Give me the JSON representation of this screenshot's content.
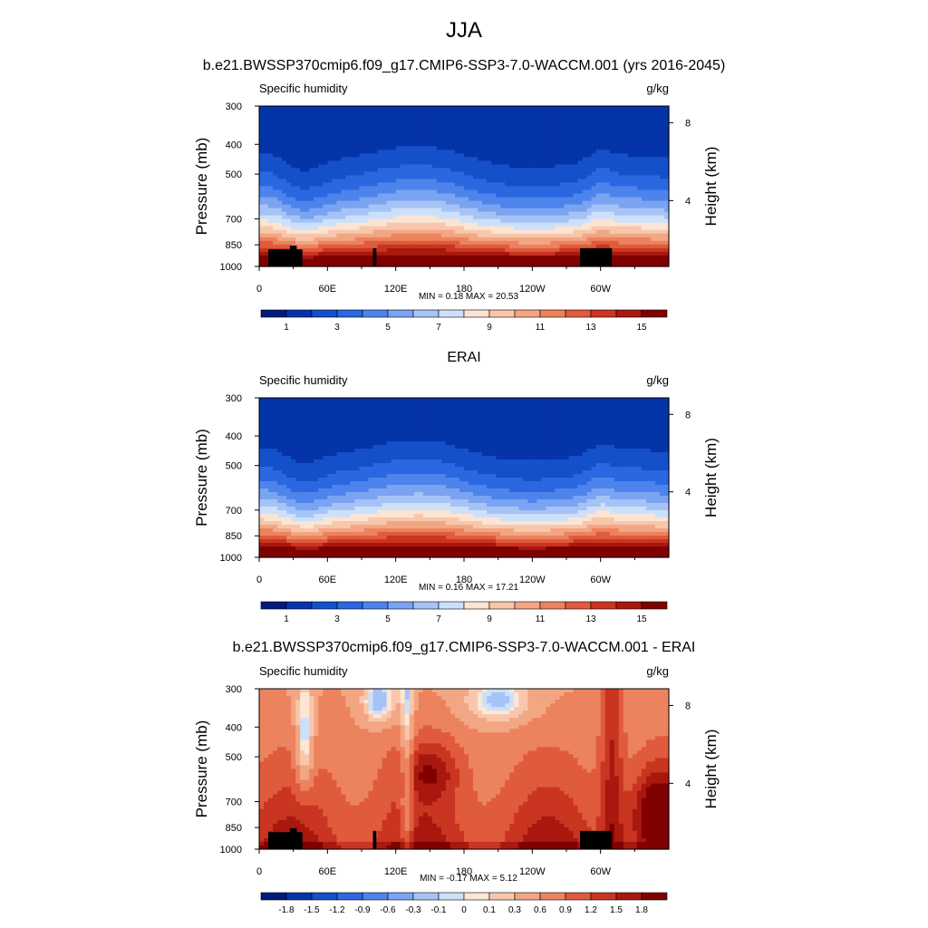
{
  "title": "JJA",
  "colors": {
    "abs_palette": [
      "#001a7d",
      "#0533a8",
      "#1450c9",
      "#2a67e0",
      "#4d84ec",
      "#7aa3f2",
      "#a6c3f6",
      "#cde0fa",
      "#fbe4d3",
      "#f8c7ab",
      "#f3a683",
      "#ec835e",
      "#e05a3c",
      "#c93520",
      "#a8180e",
      "#800000"
    ],
    "diff_palette": [
      "#001a7d",
      "#0533a8",
      "#1450c9",
      "#2a67e0",
      "#4d84ec",
      "#7aa3f2",
      "#a6c3f6",
      "#cde0fa",
      "#fde6d5",
      "#f8c7ab",
      "#f3a683",
      "#ec835e",
      "#e05a3c",
      "#c93520",
      "#a8180e",
      "#800000"
    ],
    "topography": "#000000"
  },
  "panels": [
    {
      "title": "b.e21.BWSSP370cmip6.f09_g17.CMIP6-SSP3-7.0-WACCM.001 (yrs 2016-2045)",
      "left_string": "Specific humidity",
      "right_string": "g/kg",
      "minmax": "MIN =   0.18  MAX =  20.53",
      "colorbar_labels": [
        "1",
        "3",
        "5",
        "7",
        "9",
        "11",
        "13",
        "15"
      ]
    },
    {
      "title": "ERAI",
      "left_string": "Specific humidity",
      "right_string": "g/kg",
      "minmax": "MIN =   0.16  MAX =  17.21",
      "colorbar_labels": [
        "1",
        "3",
        "5",
        "7",
        "9",
        "11",
        "13",
        "15"
      ]
    },
    {
      "title": "b.e21.BWSSP370cmip6.f09_g17.CMIP6-SSP3-7.0-WACCM.001 - ERAI",
      "left_string": "Specific humidity",
      "right_string": "g/kg",
      "minmax": "MIN =  -0.17  MAX =   5.12",
      "colorbar_labels": [
        "-1.8",
        "-1.5",
        "-1.2",
        "-0.9",
        "-0.6",
        "-0.3",
        "-0.1",
        "0",
        "0.1",
        "0.3",
        "0.6",
        "0.9",
        "1.2",
        "1.5",
        "1.8"
      ]
    }
  ],
  "chart_data": [
    {
      "type": "heatmap",
      "title": "b.e21.BWSSP370cmip6.f09_g17.CMIP6-SSP3-7.0-WACCM.001 (yrs 2016-2045)",
      "variable": "Specific humidity",
      "units": "g/kg",
      "ylabel": "Pressure (mb)",
      "ylabel_right": "Height (km)",
      "x_ticks": [
        "0",
        "60E",
        "120E",
        "180",
        "120W",
        "60W"
      ],
      "x_tick_values": [
        0,
        60,
        120,
        180,
        240,
        300
      ],
      "xlim": [
        0,
        360
      ],
      "y_ticks": [
        "300",
        "400",
        "500",
        "700",
        "850",
        "1000"
      ],
      "y_tick_values": [
        300,
        400,
        500,
        700,
        850,
        1000
      ],
      "ylim": [
        1000,
        300
      ],
      "y_scale": "log",
      "y_right_ticks": [
        "8",
        "4"
      ],
      "y_right_tick_values": [
        8,
        4
      ],
      "contour_levels": [
        0,
        1,
        2,
        3,
        4,
        5,
        6,
        7,
        8,
        9,
        10,
        11,
        12,
        13,
        14,
        15
      ],
      "min": 0.18,
      "max": 20.53
    },
    {
      "type": "heatmap",
      "title": "ERAI",
      "variable": "Specific humidity",
      "units": "g/kg",
      "ylabel": "Pressure (mb)",
      "ylabel_right": "Height (km)",
      "x_ticks": [
        "0",
        "60E",
        "120E",
        "180",
        "120W",
        "60W"
      ],
      "x_tick_values": [
        0,
        60,
        120,
        180,
        240,
        300
      ],
      "xlim": [
        0,
        360
      ],
      "y_ticks": [
        "300",
        "400",
        "500",
        "700",
        "850",
        "1000"
      ],
      "y_tick_values": [
        300,
        400,
        500,
        700,
        850,
        1000
      ],
      "ylim": [
        1000,
        300
      ],
      "y_scale": "log",
      "y_right_ticks": [
        "8",
        "4"
      ],
      "y_right_tick_values": [
        8,
        4
      ],
      "contour_levels": [
        0,
        1,
        2,
        3,
        4,
        5,
        6,
        7,
        8,
        9,
        10,
        11,
        12,
        13,
        14,
        15
      ],
      "min": 0.16,
      "max": 17.21
    },
    {
      "type": "heatmap",
      "title": "b.e21.BWSSP370cmip6.f09_g17.CMIP6-SSP3-7.0-WACCM.001 - ERAI",
      "variable": "Specific humidity",
      "units": "g/kg",
      "ylabel": "Pressure (mb)",
      "ylabel_right": "Height (km)",
      "x_ticks": [
        "0",
        "60E",
        "120E",
        "180",
        "120W",
        "60W"
      ],
      "x_tick_values": [
        0,
        60,
        120,
        180,
        240,
        300
      ],
      "xlim": [
        0,
        360
      ],
      "y_ticks": [
        "300",
        "400",
        "500",
        "700",
        "850",
        "1000"
      ],
      "y_tick_values": [
        300,
        400,
        500,
        700,
        850,
        1000
      ],
      "ylim": [
        1000,
        300
      ],
      "y_scale": "log",
      "y_right_ticks": [
        "8",
        "4"
      ],
      "y_right_tick_values": [
        8,
        4
      ],
      "contour_levels": [
        -1.8,
        -1.5,
        -1.2,
        -0.9,
        -0.6,
        -0.3,
        -0.1,
        0,
        0.1,
        0.3,
        0.6,
        0.9,
        1.2,
        1.5,
        1.8
      ],
      "min": -0.17,
      "max": 5.12
    }
  ]
}
